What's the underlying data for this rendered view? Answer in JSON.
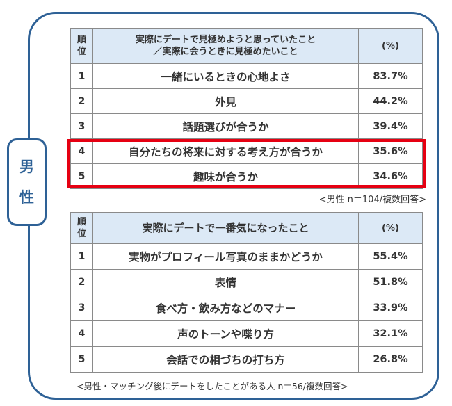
{
  "gender_label": [
    "男",
    "性"
  ],
  "table1": {
    "header": {
      "rank": "順\n位",
      "item": "実際にデートで見極めようと思っていたこと\n／実際に会うときに見極めたいこと",
      "pct": "(%)"
    },
    "rows": [
      {
        "rank": "1",
        "item": "一緒にいるときの心地よさ",
        "pct": "83.7%"
      },
      {
        "rank": "2",
        "item": "外見",
        "pct": "44.2%"
      },
      {
        "rank": "3",
        "item": "話題選びが合うか",
        "pct": "39.4%"
      },
      {
        "rank": "4",
        "item": "自分たちの将来に対する考え方が合うか",
        "pct": "35.6%"
      },
      {
        "rank": "5",
        "item": "趣味が合うか",
        "pct": "34.6%"
      }
    ],
    "note": "<男性 n＝104/複数回答>"
  },
  "table2": {
    "header": {
      "rank": "順\n位",
      "item": "実際にデートで一番気になったこと",
      "pct": "(%)"
    },
    "rows": [
      {
        "rank": "1",
        "item": "実物がプロフィール写真のままかどうか",
        "pct": "55.4%"
      },
      {
        "rank": "2",
        "item": "表情",
        "pct": "51.8%"
      },
      {
        "rank": "3",
        "item": "食べ方・飲み方などのマナー",
        "pct": "33.9%"
      },
      {
        "rank": "4",
        "item": "声のトーンや喋り方",
        "pct": "32.1%"
      },
      {
        "rank": "5",
        "item": "会話での相づちの打ち方",
        "pct": "26.8%"
      }
    ],
    "note": "<男性・マッチング後にデートをしたことがある人 n＝56/複数回答>"
  },
  "colors": {
    "frame": "#2e6196",
    "header_bg": "#dce9f6",
    "highlight": "#e60012"
  }
}
